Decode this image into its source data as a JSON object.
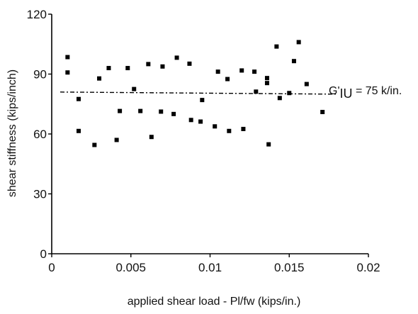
{
  "chart_data": {
    "type": "scatter",
    "xlabel": "applied shear load - Pl/fw  (kips/in.)",
    "ylabel": "shear stiffness (kips/inch)",
    "xlim": [
      0,
      0.02
    ],
    "ylim": [
      0,
      120
    ],
    "x_ticks": [
      {
        "value": 0,
        "label": "0"
      },
      {
        "value": 0.005,
        "label": "0.005"
      },
      {
        "value": 0.01,
        "label": "0.01"
      },
      {
        "value": 0.015,
        "label": "0.015"
      },
      {
        "value": 0.02,
        "label": "0.02"
      }
    ],
    "y_ticks": [
      {
        "value": 0,
        "label": "0"
      },
      {
        "value": 30,
        "label": "30"
      },
      {
        "value": 60,
        "label": "60"
      },
      {
        "value": 90,
        "label": "90"
      },
      {
        "value": 120,
        "label": "120"
      }
    ],
    "grid": false,
    "points": [
      {
        "x": 0.001,
        "y": 98.5
      },
      {
        "x": 0.001,
        "y": 90.8
      },
      {
        "x": 0.0017,
        "y": 77.5
      },
      {
        "x": 0.0017,
        "y": 61.5
      },
      {
        "x": 0.0027,
        "y": 54.5
      },
      {
        "x": 0.003,
        "y": 87.8
      },
      {
        "x": 0.0036,
        "y": 93.0
      },
      {
        "x": 0.0041,
        "y": 57.0
      },
      {
        "x": 0.0043,
        "y": 71.5
      },
      {
        "x": 0.0048,
        "y": 93.0
      },
      {
        "x": 0.0052,
        "y": 82.5
      },
      {
        "x": 0.0056,
        "y": 71.5
      },
      {
        "x": 0.0061,
        "y": 95.0
      },
      {
        "x": 0.0063,
        "y": 58.5
      },
      {
        "x": 0.0069,
        "y": 71.2
      },
      {
        "x": 0.007,
        "y": 93.8
      },
      {
        "x": 0.0077,
        "y": 70.0
      },
      {
        "x": 0.0079,
        "y": 98.2
      },
      {
        "x": 0.0087,
        "y": 95.2
      },
      {
        "x": 0.0088,
        "y": 67.0
      },
      {
        "x": 0.0094,
        "y": 66.2
      },
      {
        "x": 0.0095,
        "y": 77.0
      },
      {
        "x": 0.0103,
        "y": 63.8
      },
      {
        "x": 0.0105,
        "y": 91.2
      },
      {
        "x": 0.0111,
        "y": 87.5
      },
      {
        "x": 0.0112,
        "y": 61.5
      },
      {
        "x": 0.012,
        "y": 91.8
      },
      {
        "x": 0.0121,
        "y": 62.5
      },
      {
        "x": 0.0128,
        "y": 91.2
      },
      {
        "x": 0.0129,
        "y": 81.2
      },
      {
        "x": 0.0136,
        "y": 88.0
      },
      {
        "x": 0.0136,
        "y": 85.5
      },
      {
        "x": 0.0137,
        "y": 54.8
      },
      {
        "x": 0.0142,
        "y": 103.8
      },
      {
        "x": 0.0144,
        "y": 78.0
      },
      {
        "x": 0.015,
        "y": 80.5
      },
      {
        "x": 0.0153,
        "y": 96.5
      },
      {
        "x": 0.0156,
        "y": 106.0
      },
      {
        "x": 0.0161,
        "y": 85.0
      },
      {
        "x": 0.0171,
        "y": 71.0
      }
    ],
    "reference_line": {
      "y": 81,
      "x_range": [
        0,
        0.018
      ],
      "style": "dash-dot"
    },
    "annotation": {
      "prefix": "G'",
      "subscript": "IU",
      "suffix": " =  75 k/in."
    }
  }
}
